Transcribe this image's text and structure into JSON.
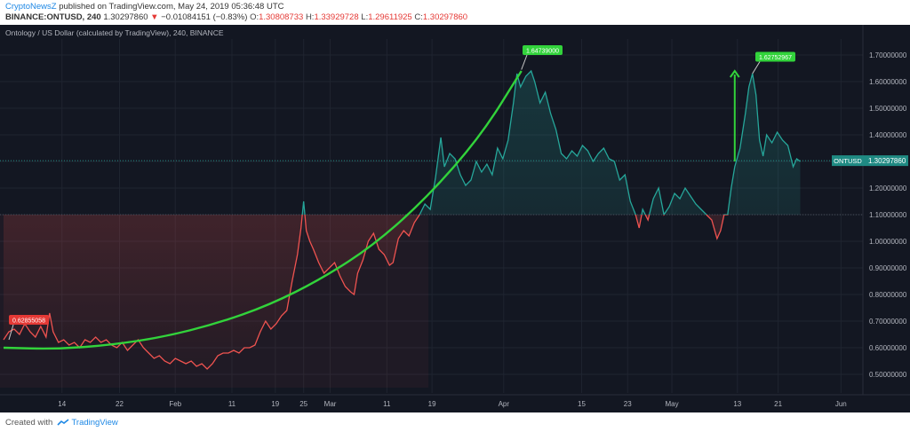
{
  "header": {
    "author": "CryptoNewsZ",
    "published": "published on TradingView.com, May 24, 2019 05:36:48 UTC",
    "symbol": "BINANCE:ONTUSD, 240",
    "last": "1.30297860",
    "change_arrow": "▼",
    "change": "−0.01084151 (−0.83%)",
    "o_label": "O:",
    "o": "1.30808733",
    "h_label": "H:",
    "h": "1.33929728",
    "l_label": "L:",
    "l": "1.29611925",
    "c_label": "C:",
    "c": "1.30297860"
  },
  "footer": {
    "created_with": "Created with",
    "brand": "TradingView",
    "logo_icon": "tradingview-logo-icon"
  },
  "colors": {
    "background": "#131722",
    "up": "#26a69a",
    "down": "#ef5350",
    "curve": "#32d33b",
    "price_label": "#1f8a83",
    "grid": "#1f2430"
  },
  "chart_data": {
    "type": "line",
    "title": "Ontology / US Dollar (calculated by TradingView), 240, BINANCE",
    "x_ticks": [
      "14",
      "22",
      "Feb",
      "11",
      "19",
      "25",
      "Mar",
      "11",
      "19",
      "Apr",
      "15",
      "23",
      "May",
      "13",
      "21",
      "Jun"
    ],
    "y_ticks": [
      "0.50000000",
      "0.60000000",
      "0.70000000",
      "0.80000000",
      "0.90000000",
      "1.00000000",
      "1.10000000",
      "1.20000000",
      "1.30000000",
      "1.40000000",
      "1.50000000",
      "1.60000000",
      "1.70000000"
    ],
    "ylim": [
      0.43,
      1.76
    ],
    "reference_price": 1.1,
    "current_price": 1.3029786,
    "current_price_label": "ONTUSD",
    "current_price_text": "1.30297860",
    "annotations": [
      {
        "text": "0.62855058",
        "value": 0.62855058,
        "color": "#e53935"
      },
      {
        "text": "1.64739000",
        "value": 1.64739,
        "color": "#32d33b"
      },
      {
        "text": "1.62752967",
        "value": 1.62752967,
        "color": "#32d33b"
      }
    ],
    "series": [
      {
        "values": [
          [
            0,
            0.63
          ],
          [
            6,
            0.66
          ],
          [
            12,
            0.67
          ],
          [
            18,
            0.65
          ],
          [
            24,
            0.69
          ],
          [
            30,
            0.66
          ],
          [
            36,
            0.64
          ],
          [
            42,
            0.68
          ],
          [
            48,
            0.64
          ],
          [
            52,
            0.73
          ],
          [
            56,
            0.66
          ],
          [
            62,
            0.62
          ],
          [
            68,
            0.63
          ],
          [
            74,
            0.61
          ],
          [
            80,
            0.62
          ],
          [
            86,
            0.6
          ],
          [
            92,
            0.63
          ],
          [
            98,
            0.62
          ],
          [
            104,
            0.64
          ],
          [
            110,
            0.62
          ],
          [
            116,
            0.63
          ],
          [
            122,
            0.61
          ],
          [
            128,
            0.6
          ],
          [
            134,
            0.62
          ],
          [
            140,
            0.59
          ],
          [
            146,
            0.61
          ],
          [
            152,
            0.63
          ],
          [
            158,
            0.6
          ],
          [
            164,
            0.58
          ],
          [
            170,
            0.56
          ],
          [
            176,
            0.57
          ],
          [
            182,
            0.55
          ],
          [
            188,
            0.54
          ],
          [
            194,
            0.56
          ],
          [
            200,
            0.55
          ],
          [
            206,
            0.54
          ],
          [
            212,
            0.55
          ],
          [
            218,
            0.53
          ],
          [
            224,
            0.54
          ],
          [
            230,
            0.52
          ],
          [
            236,
            0.54
          ],
          [
            242,
            0.57
          ],
          [
            248,
            0.58
          ],
          [
            254,
            0.58
          ],
          [
            260,
            0.59
          ],
          [
            266,
            0.58
          ],
          [
            272,
            0.6
          ],
          [
            278,
            0.6
          ],
          [
            284,
            0.61
          ],
          [
            290,
            0.66
          ],
          [
            296,
            0.7
          ],
          [
            302,
            0.67
          ],
          [
            308,
            0.69
          ],
          [
            314,
            0.72
          ],
          [
            320,
            0.74
          ],
          [
            326,
            0.85
          ],
          [
            332,
            0.95
          ],
          [
            336,
            1.05
          ],
          [
            339,
            1.15
          ],
          [
            342,
            1.04
          ],
          [
            346,
            1.0
          ],
          [
            350,
            0.97
          ],
          [
            356,
            0.92
          ],
          [
            362,
            0.88
          ],
          [
            368,
            0.9
          ],
          [
            374,
            0.92
          ],
          [
            380,
            0.87
          ],
          [
            386,
            0.83
          ],
          [
            392,
            0.81
          ],
          [
            396,
            0.8
          ],
          [
            400,
            0.88
          ],
          [
            406,
            0.93
          ],
          [
            412,
            1.0
          ],
          [
            418,
            1.03
          ],
          [
            424,
            0.97
          ],
          [
            430,
            0.95
          ],
          [
            436,
            0.91
          ],
          [
            440,
            0.92
          ],
          [
            446,
            1.01
          ],
          [
            452,
            1.04
          ],
          [
            458,
            1.02
          ],
          [
            464,
            1.07
          ],
          [
            470,
            1.1
          ],
          [
            476,
            1.14
          ],
          [
            482,
            1.12
          ],
          [
            488,
            1.24
          ],
          [
            494,
            1.39
          ],
          [
            498,
            1.28
          ],
          [
            504,
            1.33
          ],
          [
            510,
            1.31
          ],
          [
            516,
            1.25
          ],
          [
            522,
            1.21
          ],
          [
            528,
            1.23
          ],
          [
            534,
            1.3
          ],
          [
            540,
            1.26
          ],
          [
            546,
            1.29
          ],
          [
            552,
            1.25
          ],
          [
            558,
            1.35
          ],
          [
            564,
            1.31
          ],
          [
            570,
            1.38
          ],
          [
            576,
            1.52
          ],
          [
            580,
            1.63
          ],
          [
            584,
            1.58
          ],
          [
            590,
            1.62
          ],
          [
            596,
            1.64
          ],
          [
            600,
            1.6
          ],
          [
            606,
            1.52
          ],
          [
            612,
            1.56
          ],
          [
            618,
            1.48
          ],
          [
            624,
            1.42
          ],
          [
            630,
            1.33
          ],
          [
            636,
            1.31
          ],
          [
            642,
            1.34
          ],
          [
            648,
            1.32
          ],
          [
            654,
            1.36
          ],
          [
            660,
            1.34
          ],
          [
            666,
            1.3
          ],
          [
            672,
            1.33
          ],
          [
            678,
            1.35
          ],
          [
            684,
            1.31
          ],
          [
            690,
            1.3
          ],
          [
            696,
            1.23
          ],
          [
            702,
            1.25
          ],
          [
            708,
            1.15
          ],
          [
            714,
            1.1
          ],
          [
            718,
            1.05
          ],
          [
            722,
            1.12
          ],
          [
            728,
            1.08
          ],
          [
            734,
            1.16
          ],
          [
            740,
            1.2
          ],
          [
            746,
            1.1
          ],
          [
            752,
            1.13
          ],
          [
            758,
            1.18
          ],
          [
            764,
            1.16
          ],
          [
            770,
            1.2
          ],
          [
            776,
            1.17
          ],
          [
            782,
            1.14
          ],
          [
            788,
            1.12
          ],
          [
            794,
            1.1
          ],
          [
            800,
            1.08
          ],
          [
            806,
            1.01
          ],
          [
            810,
            1.04
          ],
          [
            814,
            1.1
          ],
          [
            818,
            1.1
          ],
          [
            822,
            1.2
          ],
          [
            826,
            1.28
          ],
          [
            832,
            1.35
          ],
          [
            838,
            1.48
          ],
          [
            842,
            1.58
          ],
          [
            846,
            1.63
          ],
          [
            850,
            1.55
          ],
          [
            854,
            1.38
          ],
          [
            858,
            1.32
          ],
          [
            862,
            1.4
          ],
          [
            868,
            1.37
          ],
          [
            874,
            1.41
          ],
          [
            880,
            1.38
          ],
          [
            886,
            1.36
          ],
          [
            892,
            1.28
          ],
          [
            896,
            1.31
          ],
          [
            900,
            1.3
          ]
        ]
      }
    ],
    "curve": [
      [
        0,
        0.6
      ],
      [
        60,
        0.595
      ],
      [
        120,
        0.61
      ],
      [
        180,
        0.64
      ],
      [
        240,
        0.69
      ],
      [
        300,
        0.76
      ],
      [
        360,
        0.86
      ],
      [
        420,
        0.99
      ],
      [
        480,
        1.17
      ],
      [
        540,
        1.4
      ],
      [
        585,
        1.64
      ]
    ],
    "arrow": {
      "from": [
        826,
        1.3
      ],
      "to": [
        826,
        1.64
      ]
    },
    "x_range": [
      0,
      1030
    ],
    "x_tick_positions": [
      66,
      131,
      194,
      258,
      307,
      339,
      369,
      433,
      484,
      565,
      653,
      705,
      755,
      829,
      875,
      946
    ]
  }
}
